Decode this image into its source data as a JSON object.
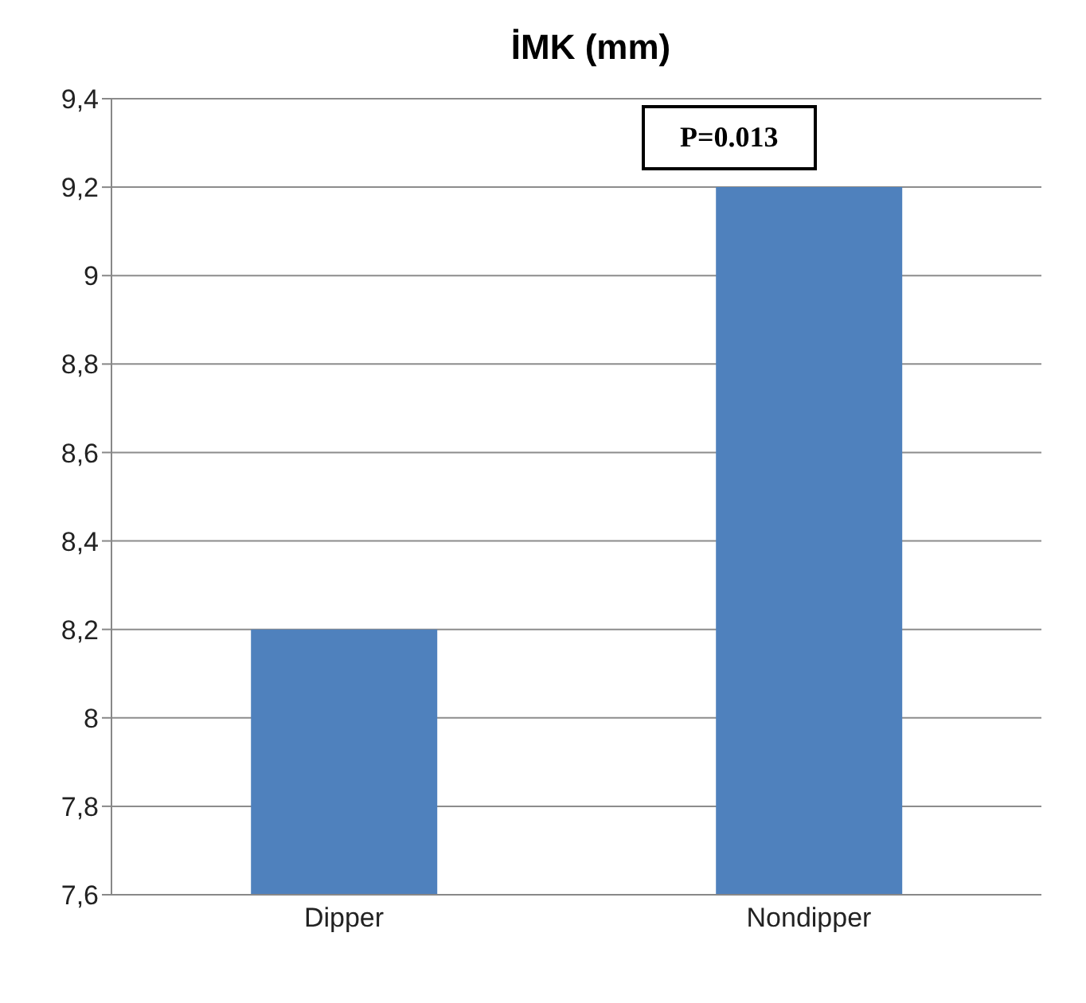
{
  "chart_data": {
    "type": "bar",
    "title": "İMK (mm)",
    "categories": [
      "Dipper",
      "Nondipper"
    ],
    "values": [
      8.2,
      9.2
    ],
    "color": "#4f81bd",
    "ylim": [
      7.6,
      9.4
    ],
    "yticks": [
      {
        "value": 7.6,
        "label": "7,6"
      },
      {
        "value": 7.8,
        "label": "7,8"
      },
      8,
      {
        "value": 8.2,
        "label": "8,2"
      },
      {
        "value": 8.4,
        "label": "8,4"
      },
      {
        "value": 8.6,
        "label": "8,6"
      },
      {
        "value": 8.8,
        "label": "8,8"
      },
      9,
      {
        "value": 9.2,
        "label": "9,2"
      },
      {
        "value": 9.4,
        "label": "9,4"
      }
    ],
    "grid": "y",
    "annotations": [
      "P=0.013"
    ]
  }
}
